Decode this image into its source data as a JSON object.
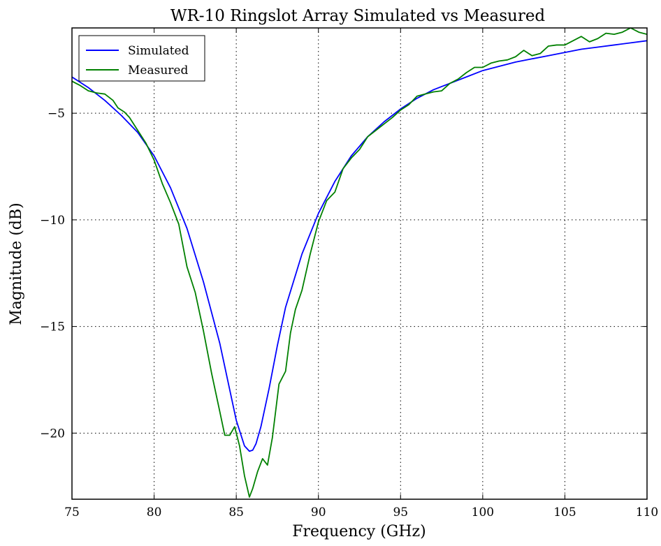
{
  "chart_data": {
    "type": "line",
    "title": "WR-10 Ringslot Array Simulated vs Measured",
    "xlabel": "Frequency (GHz)",
    "ylabel": "Magnitude (dB)",
    "xlim": [
      75,
      110
    ],
    "ylim": [
      -23.1,
      -1.0
    ],
    "xticks": [
      75,
      80,
      85,
      90,
      95,
      100,
      105,
      110
    ],
    "yticks": [
      -20,
      -15,
      -10,
      -5
    ],
    "xtick_labels": [
      "75",
      "80",
      "85",
      "90",
      "95",
      "100",
      "105",
      "110"
    ],
    "ytick_labels": [
      "−20",
      "−15",
      "−10",
      "−5"
    ],
    "grid": true,
    "legend_position": "upper-left",
    "series": [
      {
        "name": "Simulated",
        "color": "#0000ff",
        "x": [
          75,
          76,
          77,
          78,
          79,
          80,
          81,
          82,
          83,
          84,
          84.5,
          85,
          85.5,
          85.8,
          86,
          86.2,
          86.5,
          87,
          87.5,
          88,
          89,
          90,
          91,
          92,
          93,
          94,
          95,
          96,
          97,
          98,
          99,
          100,
          101,
          102,
          103,
          104,
          105,
          106,
          107,
          108,
          109,
          110
        ],
        "y": [
          -3.3,
          -3.8,
          -4.4,
          -5.1,
          -5.9,
          -7.0,
          -8.5,
          -10.4,
          -12.9,
          -15.8,
          -17.6,
          -19.4,
          -20.6,
          -20.85,
          -20.8,
          -20.5,
          -19.7,
          -17.9,
          -15.9,
          -14.1,
          -11.6,
          -9.7,
          -8.2,
          -7.0,
          -6.1,
          -5.4,
          -4.8,
          -4.3,
          -3.9,
          -3.6,
          -3.3,
          -3.0,
          -2.8,
          -2.6,
          -2.45,
          -2.3,
          -2.15,
          -2.0,
          -1.9,
          -1.8,
          -1.7,
          -1.6
        ]
      },
      {
        "name": "Measured",
        "color": "#008000",
        "x": [
          75,
          75.5,
          76,
          76.5,
          77,
          77.5,
          77.8,
          78.2,
          78.5,
          79,
          79.5,
          80,
          80.5,
          81,
          81.5,
          82,
          82.5,
          83,
          83.5,
          84,
          84.3,
          84.6,
          84.9,
          85.2,
          85.5,
          85.8,
          86,
          86.3,
          86.6,
          86.9,
          87.2,
          87.6,
          88,
          88.3,
          88.6,
          89,
          89.5,
          90,
          90.5,
          91,
          91.5,
          92,
          92.5,
          93,
          93.5,
          94,
          94.5,
          95,
          95.5,
          96,
          96.5,
          97,
          97.5,
          98,
          98.5,
          99,
          99.5,
          100,
          100.5,
          101,
          101.5,
          102,
          102.5,
          103,
          103.5,
          104,
          104.5,
          105,
          105.5,
          106,
          106.5,
          107,
          107.5,
          108,
          108.5,
          109,
          109.5,
          110
        ],
        "y": [
          -3.5,
          -3.7,
          -3.95,
          -4.05,
          -4.1,
          -4.4,
          -4.75,
          -4.95,
          -5.2,
          -5.8,
          -6.4,
          -7.2,
          -8.3,
          -9.2,
          -10.2,
          -12.2,
          -13.4,
          -15.2,
          -17.2,
          -19.0,
          -20.1,
          -20.1,
          -19.7,
          -20.6,
          -22.0,
          -23.0,
          -22.6,
          -21.8,
          -21.2,
          -21.5,
          -20.2,
          -17.7,
          -17.1,
          -15.3,
          -14.2,
          -13.3,
          -11.6,
          -10.1,
          -9.1,
          -8.7,
          -7.6,
          -7.1,
          -6.7,
          -6.1,
          -5.8,
          -5.5,
          -5.2,
          -4.85,
          -4.6,
          -4.2,
          -4.1,
          -4.0,
          -3.95,
          -3.6,
          -3.4,
          -3.1,
          -2.85,
          -2.85,
          -2.65,
          -2.55,
          -2.5,
          -2.35,
          -2.05,
          -2.3,
          -2.2,
          -1.85,
          -1.8,
          -1.8,
          -1.6,
          -1.4,
          -1.65,
          -1.5,
          -1.25,
          -1.3,
          -1.2,
          -1.0,
          -1.2,
          -1.3
        ]
      }
    ]
  }
}
